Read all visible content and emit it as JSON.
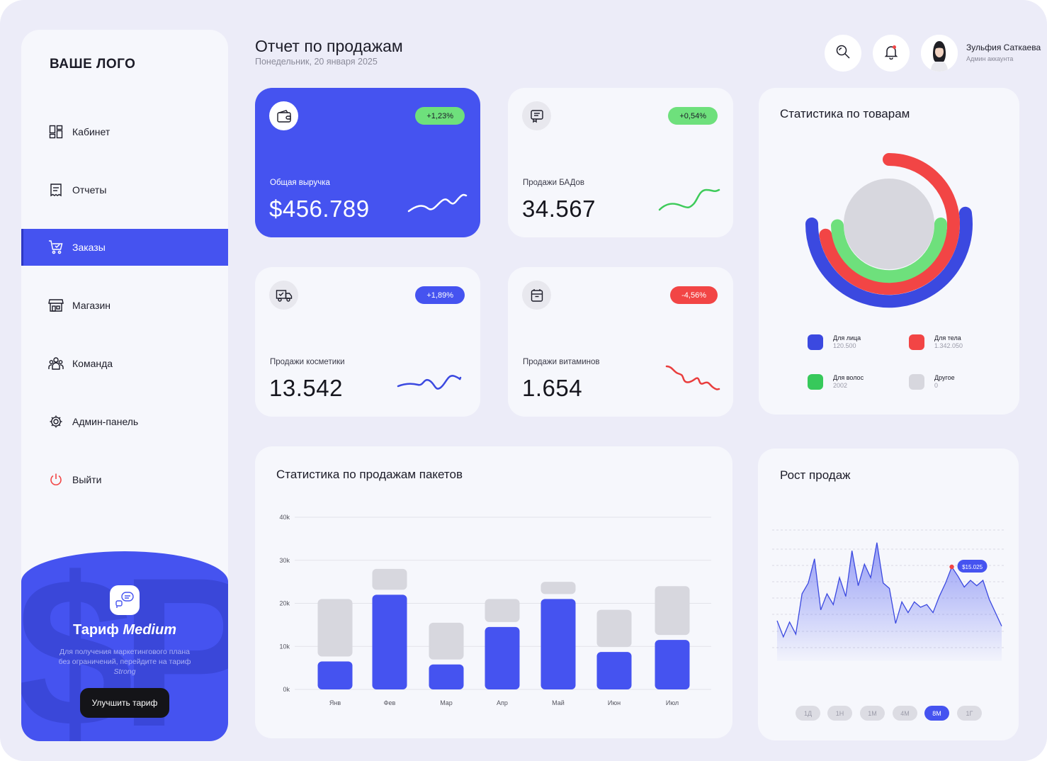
{
  "sidebar": {
    "logo": "ВАШЕ ЛОГО",
    "items": [
      {
        "label": "Кабинет",
        "icon": "dashboard-icon"
      },
      {
        "label": "Отчеты",
        "icon": "report-icon"
      },
      {
        "label": "Заказы",
        "icon": "cart-icon",
        "active": true
      },
      {
        "label": "Магазин",
        "icon": "store-icon"
      },
      {
        "label": "Команда",
        "icon": "team-icon"
      },
      {
        "label": "Админ-панель",
        "icon": "gear-icon"
      },
      {
        "label": "Выйти",
        "icon": "power-icon"
      }
    ],
    "promo": {
      "watermark": "$P",
      "title_prefix": "Тариф",
      "title_plan": "Medium",
      "desc": "Для получения маркетингового плана без ограничений, перейдите на тариф",
      "desc_plan": "Strong",
      "button": "Улучшить тариф"
    }
  },
  "header": {
    "title": "Отчет по продажам",
    "date": "Понедельник, 20 января 2025",
    "user_name": "Зульфия Саткаева",
    "user_role": "Админ аккаунта"
  },
  "kpis": [
    {
      "label": "Общая выручка",
      "value": "$456.789",
      "badge": "+1,23%",
      "badge_color": "#6ee07c",
      "line_color": "#ffffff"
    },
    {
      "label": "Продажи БАДов",
      "value": "34.567",
      "badge": "+0,54%",
      "badge_color": "#6ee07c",
      "line_color": "#3ecb5a"
    },
    {
      "label": "Продажи косметики",
      "value": "13.542",
      "badge": "+1,89%",
      "badge_color": "#4553f0",
      "line_color": "#3b49e0"
    },
    {
      "label": "Продажи витаминов",
      "value": "1.654",
      "badge": "-4,56%",
      "badge_color": "#f24545",
      "line_color": "#e93d3d"
    }
  ],
  "products": {
    "title": "Статистика по товарам",
    "legend": [
      {
        "name": "Для лица",
        "value": "120.500",
        "color": "#3b49e0"
      },
      {
        "name": "Для тела",
        "value": "1.342.050",
        "color": "#f24545"
      },
      {
        "name": "Для волос",
        "value": "2002",
        "color": "#37c95b"
      },
      {
        "name": "Другое",
        "value": "0",
        "color": "#d7d7de"
      }
    ]
  },
  "packages": {
    "title": "Статистика по продажам пакетов",
    "chart_data": {
      "type": "bar",
      "categories": [
        "Янв",
        "Фев",
        "Мар",
        "Апр",
        "Май",
        "Июн",
        "Июл"
      ],
      "series": [
        {
          "values": [
            6500,
            22000,
            5800,
            14500,
            21000,
            8700,
            11500
          ],
          "color": "#4553f0"
        },
        {
          "values": [
            21000,
            28000,
            15500,
            21000,
            25000,
            18500,
            24000
          ],
          "color": "#d7d7de"
        }
      ],
      "y_ticks": [
        "0k",
        "10k",
        "20k",
        "30k",
        "40k"
      ],
      "ylim": [
        0,
        40000
      ]
    }
  },
  "growth": {
    "title": "Рост продаж",
    "tooltip": "$15.025",
    "ranges": [
      "1Д",
      "1Н",
      "1М",
      "4М",
      "8М",
      "1Г"
    ],
    "active_range": "8М",
    "chart_data": {
      "type": "area",
      "values": [
        30,
        18,
        29,
        20,
        50,
        58,
        76,
        38,
        50,
        42,
        62,
        48,
        82,
        56,
        72,
        62,
        88,
        58,
        54,
        28,
        44,
        36,
        44,
        40,
        42,
        36,
        48,
        58,
        70,
        63,
        55,
        60,
        56,
        60,
        46,
        36,
        26
      ],
      "highlight_index": 28,
      "color": "#3b49e0"
    }
  }
}
